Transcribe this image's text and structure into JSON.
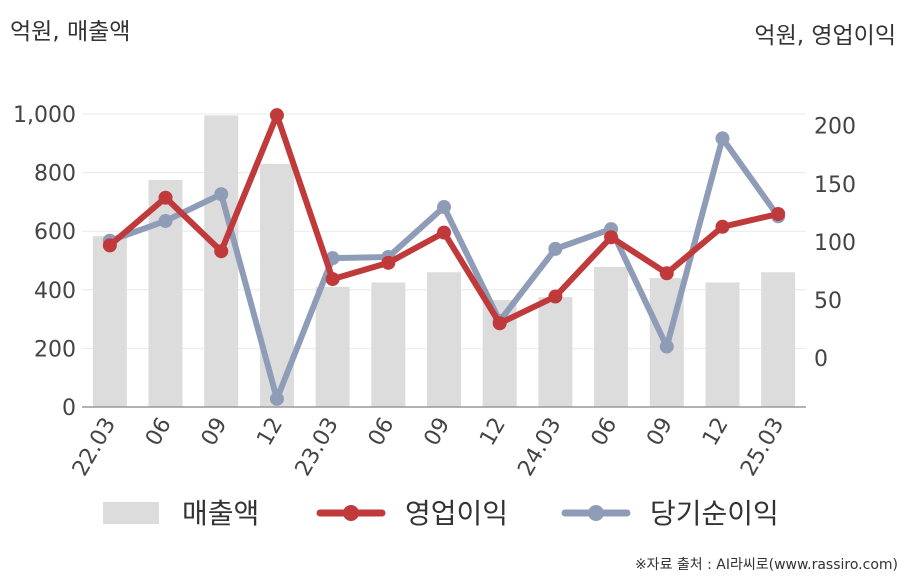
{
  "header": {
    "left_unit": "억원, 매출액",
    "right_unit": "억원, 영업이익"
  },
  "source": "※자료 출처 : AI라씨로(www.rassiro.com)",
  "chart_data": {
    "type": "bar",
    "categories": [
      "22.03",
      "06",
      "09",
      "12",
      "23.03",
      "06",
      "09",
      "12",
      "24.03",
      "06",
      "09",
      "12",
      "25.03"
    ],
    "y_left": {
      "min": 0,
      "max": 1000,
      "ticks": [
        0,
        200,
        400,
        600,
        800,
        1000
      ],
      "tick_labels": [
        "0",
        "200",
        "400",
        "600",
        "800",
        "1,000"
      ]
    },
    "y_right": {
      "min": -42,
      "max": 210,
      "ticks": [
        0,
        50,
        100,
        150,
        200
      ],
      "tick_labels": [
        "0",
        "50",
        "100",
        "150",
        "200"
      ]
    },
    "grid": true,
    "legend_position": "bottom",
    "series": [
      {
        "name": "매출액",
        "kind": "bar",
        "axis": "left",
        "color": "#dcdcdc",
        "values": [
          583,
          775,
          995,
          830,
          410,
          425,
          460,
          365,
          375,
          478,
          440,
          425,
          460
        ]
      },
      {
        "name": "영업이익",
        "kind": "line",
        "axis": "right",
        "color": "#c0393b",
        "values": [
          97,
          138,
          92,
          209,
          68,
          82,
          108,
          30,
          53,
          104,
          73,
          113,
          124
        ]
      },
      {
        "name": "당기순이익",
        "kind": "line",
        "axis": "right",
        "color": "#8f9cb8",
        "values": [
          101,
          118,
          141,
          -35,
          86,
          87,
          130,
          32,
          94,
          111,
          10,
          189,
          122
        ]
      }
    ]
  }
}
